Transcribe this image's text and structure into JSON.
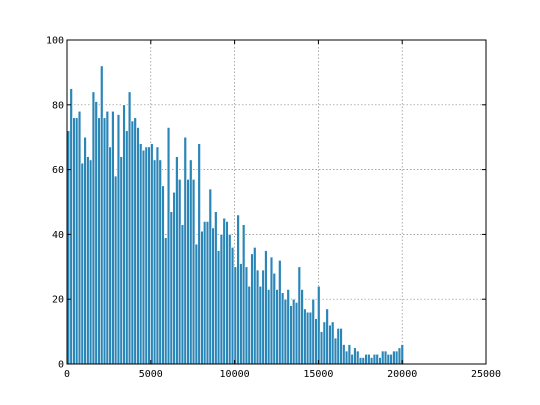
{
  "chart_data": {
    "type": "bar",
    "title": "",
    "xlabel": "",
    "ylabel": "",
    "xlim": [
      0,
      25000
    ],
    "ylim": [
      0,
      100
    ],
    "grid": true,
    "bin_width": 166,
    "xticks": [
      {
        "value": 0,
        "label": "0"
      },
      {
        "value": 5000,
        "label": "5000"
      },
      {
        "value": 10000,
        "label": "10000"
      },
      {
        "value": 15000,
        "label": "15000"
      },
      {
        "value": 20000,
        "label": "20000"
      },
      {
        "value": 25000,
        "label": "25000"
      }
    ],
    "yticks": [
      {
        "value": 0,
        "label": "0"
      },
      {
        "value": 20,
        "label": "20"
      },
      {
        "value": 40,
        "label": "40"
      },
      {
        "value": 60,
        "label": "60"
      },
      {
        "value": 80,
        "label": "80"
      },
      {
        "value": 100,
        "label": "100"
      }
    ],
    "colors": {
      "bar_fill": "#2b86b8",
      "bar_edge": "#ffffff",
      "grid": "#888888",
      "axes": "#000000"
    },
    "x": [
      0,
      166,
      332,
      498,
      664,
      830,
      996,
      1162,
      1328,
      1494,
      1660,
      1826,
      1992,
      2158,
      2324,
      2490,
      2656,
      2822,
      2988,
      3154,
      3320,
      3486,
      3652,
      3818,
      3984,
      4150,
      4316,
      4482,
      4648,
      4814,
      4980,
      5146,
      5312,
      5478,
      5644,
      5810,
      5976,
      6142,
      6308,
      6474,
      6640,
      6806,
      6972,
      7138,
      7304,
      7470,
      7636,
      7802,
      7968,
      8134,
      8300,
      8466,
      8632,
      8798,
      8964,
      9130,
      9296,
      9462,
      9628,
      9794,
      9960,
      10126,
      10292,
      10458,
      10624,
      10790,
      10956,
      11122,
      11288,
      11454,
      11620,
      11786,
      11952,
      12118,
      12284,
      12450,
      12616,
      12782,
      12948,
      13114,
      13280,
      13446,
      13612,
      13778,
      13944,
      14110,
      14276,
      14442,
      14608,
      14774,
      14940,
      15106,
      15272,
      15438,
      15604,
      15770,
      15936,
      16102,
      16268,
      16434,
      16600,
      16766,
      16932,
      17098,
      17264,
      17430,
      17596,
      17762,
      17928,
      18094,
      18260,
      18426,
      18592,
      18758,
      18924,
      19090,
      19256,
      19422,
      19588,
      19754,
      19920
    ],
    "values": [
      72,
      85,
      76,
      76,
      78,
      62,
      70,
      64,
      63,
      84,
      81,
      76,
      92,
      76,
      78,
      67,
      78,
      58,
      77,
      64,
      80,
      72,
      84,
      75,
      76,
      73,
      68,
      66,
      67,
      67,
      68,
      63,
      67,
      63,
      55,
      39,
      73,
      47,
      53,
      64,
      57,
      43,
      70,
      57,
      63,
      57,
      37,
      68,
      41,
      44,
      44,
      54,
      42,
      47,
      35,
      40,
      45,
      44,
      40,
      36,
      30,
      46,
      31,
      43,
      30,
      24,
      34,
      36,
      29,
      24,
      29,
      35,
      23,
      33,
      28,
      23,
      32,
      22,
      20,
      23,
      18,
      20,
      19,
      30,
      23,
      17,
      16,
      16,
      20,
      14,
      24,
      10,
      13,
      17,
      12,
      13,
      8,
      11,
      11,
      6,
      4,
      6,
      3,
      5,
      4,
      2,
      2,
      3,
      3,
      2,
      3,
      3,
      2,
      4,
      4,
      3,
      3,
      4,
      4,
      5,
      6
    ]
  }
}
